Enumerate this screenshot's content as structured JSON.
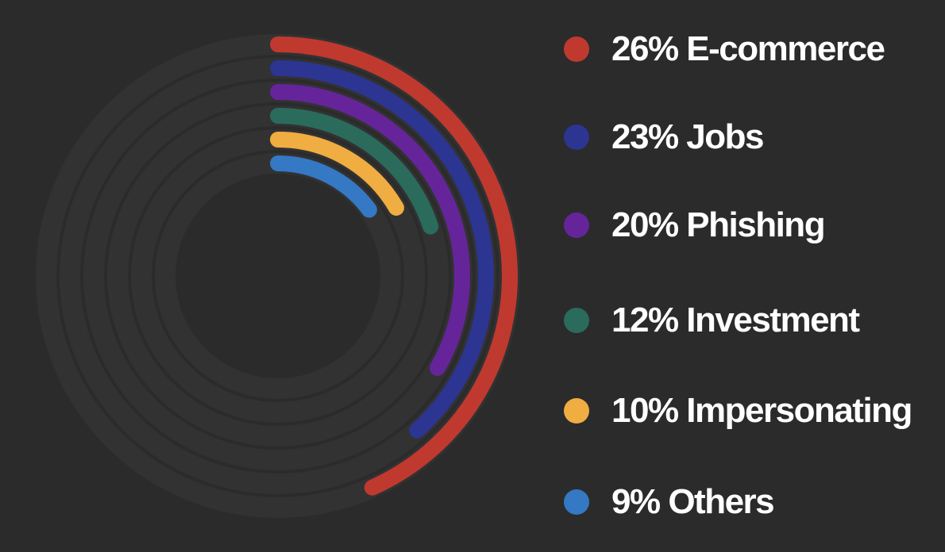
{
  "chart_data": {
    "type": "radial-bar",
    "max_value": 30,
    "series": [
      {
        "name": "E-commerce",
        "value": 26,
        "label": "26% E-commerce",
        "color": "#c0392f"
      },
      {
        "name": "Jobs",
        "value": 23,
        "label": "23% Jobs",
        "color": "#2c3591"
      },
      {
        "name": "Phishing",
        "value": 20,
        "label": "20% Phishing",
        "color": "#66249a"
      },
      {
        "name": "Investment",
        "value": 12,
        "label": "12% Investment",
        "color": "#2a6b5c"
      },
      {
        "name": "Impersonating",
        "value": 10,
        "label": "10% Impersonating",
        "color": "#f0ad42"
      },
      {
        "name": "Others",
        "value": 9,
        "label": "9% Others",
        "color": "#3578c4"
      }
    ],
    "track_color": "#323232",
    "legend_position": "right"
  }
}
